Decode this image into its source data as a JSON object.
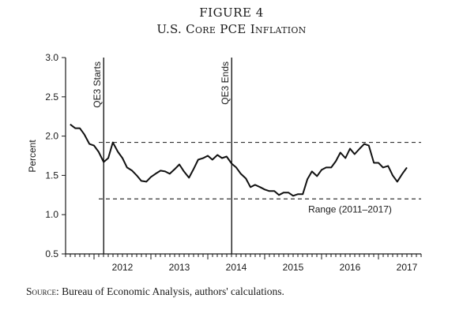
{
  "figure": {
    "number": "FIGURE 4",
    "title": "U.S. Core PCE Inflation",
    "source_label": "Source:",
    "source_text": "Bureau of Economic Analysis, authors' calculations."
  },
  "chart_data": {
    "type": "line",
    "title": "U.S. Core PCE Inflation",
    "xlabel": "",
    "ylabel": "Percent",
    "ylim": [
      0.5,
      3.0
    ],
    "xlim": [
      2011.5,
      2017.75
    ],
    "yticks": [
      0.5,
      1.0,
      1.5,
      2.0,
      2.5,
      3.0
    ],
    "ytick_labels": [
      "0.5",
      "1.0",
      "1.5",
      "2.0",
      "2.5",
      "3.0"
    ],
    "year_labels": [
      {
        "label": "2012",
        "at": 2012.0
      },
      {
        "label": "2013",
        "at": 2013.0
      },
      {
        "label": "2014",
        "at": 2014.0
      },
      {
        "label": "2015",
        "at": 2015.0
      },
      {
        "label": "2016",
        "at": 2016.0
      },
      {
        "label": "2017",
        "at": 2017.0
      }
    ],
    "grid": false,
    "series": [
      {
        "x": [
          2011.58,
          2011.67,
          2011.75,
          2011.83,
          2011.92,
          2012.0,
          2012.08,
          2012.17,
          2012.25,
          2012.33,
          2012.42,
          2012.5,
          2012.58,
          2012.67,
          2012.75,
          2012.83,
          2012.92,
          2013.0,
          2013.08,
          2013.17,
          2013.25,
          2013.33,
          2013.42,
          2013.5,
          2013.58,
          2013.67,
          2013.75,
          2013.83,
          2013.92,
          2014.0,
          2014.08,
          2014.17,
          2014.25,
          2014.33,
          2014.42,
          2014.5,
          2014.58,
          2014.67,
          2014.75,
          2014.83,
          2014.92,
          2015.0,
          2015.08,
          2015.17,
          2015.25,
          2015.33,
          2015.42,
          2015.5,
          2015.58,
          2015.67,
          2015.75,
          2015.83,
          2015.92,
          2016.0,
          2016.08,
          2016.17,
          2016.25,
          2016.33,
          2016.42,
          2016.5,
          2016.58,
          2016.67,
          2016.75,
          2016.83,
          2016.92,
          2017.0,
          2017.08,
          2017.17,
          2017.25,
          2017.33,
          2017.42,
          2017.5
        ],
        "y": [
          2.15,
          2.1,
          2.1,
          2.02,
          1.9,
          1.88,
          1.8,
          1.67,
          1.72,
          1.92,
          1.8,
          1.72,
          1.6,
          1.56,
          1.5,
          1.43,
          1.42,
          1.48,
          1.52,
          1.56,
          1.55,
          1.52,
          1.58,
          1.64,
          1.55,
          1.47,
          1.58,
          1.7,
          1.72,
          1.75,
          1.7,
          1.76,
          1.72,
          1.74,
          1.65,
          1.6,
          1.52,
          1.46,
          1.35,
          1.38,
          1.35,
          1.32,
          1.3,
          1.3,
          1.25,
          1.28,
          1.28,
          1.24,
          1.26,
          1.26,
          1.45,
          1.55,
          1.49,
          1.57,
          1.6,
          1.6,
          1.68,
          1.79,
          1.72,
          1.84,
          1.77,
          1.84,
          1.9,
          1.88,
          1.66,
          1.66,
          1.6,
          1.62,
          1.5,
          1.42,
          1.52,
          1.6
        ]
      }
    ],
    "reference_lines": [
      {
        "type": "vertical",
        "x": 2012.17,
        "label": "QE3 Starts",
        "style": "solid"
      },
      {
        "type": "vertical",
        "x": 2014.42,
        "label": "QE3 Ends",
        "style": "solid"
      },
      {
        "type": "horizontal",
        "y": 1.92,
        "style": "dashed"
      },
      {
        "type": "horizontal",
        "y": 1.2,
        "style": "dashed",
        "label": "Range (2011–2017)"
      }
    ]
  }
}
